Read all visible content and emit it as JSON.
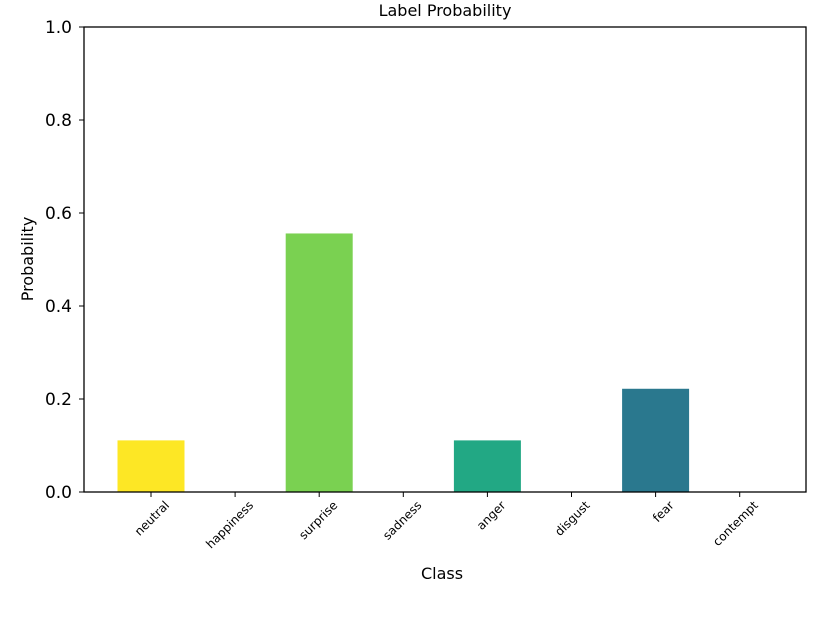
{
  "chart_data": {
    "type": "bar",
    "title": "Label Probability",
    "xlabel": "Class",
    "ylabel": "Probability",
    "categories": [
      "neutral",
      "happiness",
      "surprise",
      "sadness",
      "anger",
      "disgust",
      "fear",
      "contempt"
    ],
    "values": [
      0.111,
      0.0,
      0.556,
      0.0,
      0.111,
      0.0,
      0.222,
      0.0
    ],
    "colors": [
      "#fde725",
      "#fde725",
      "#7ad151",
      "#7ad151",
      "#22a884",
      "#22a884",
      "#2a788e",
      "#2a788e"
    ],
    "ylim": [
      0,
      1.0
    ],
    "yticks": [
      "0.0",
      "0.2",
      "0.4",
      "0.6",
      "0.8",
      "1.0"
    ],
    "grid": false,
    "legend": "none"
  }
}
